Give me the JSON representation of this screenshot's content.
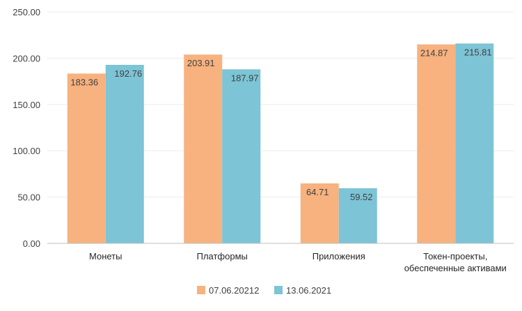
{
  "chart_data": {
    "type": "bar",
    "categories": [
      [
        "Монеты"
      ],
      [
        "Платформы"
      ],
      [
        "Приложения"
      ],
      [
        "Токен-проекты,",
        "обеспеченные активами"
      ]
    ],
    "series": [
      {
        "name": "07.06.20212",
        "values": [
          183.36,
          203.91,
          64.71,
          214.87
        ],
        "color": "#F7B27F"
      },
      {
        "name": "13.06.2021",
        "values": [
          192.76,
          187.97,
          59.52,
          215.81
        ],
        "color": "#7CC4D6"
      }
    ],
    "value_labels": [
      [
        "183.36",
        "203.91",
        "64.71",
        "214.87"
      ],
      [
        "192.76",
        "187.97",
        "59.52",
        "215.81"
      ]
    ],
    "y_ticks": [
      "0.00",
      "50.00",
      "100.00",
      "150.00",
      "200.00",
      "250.00"
    ],
    "ylim": [
      0,
      250
    ],
    "grid": true,
    "legend_position": "bottom",
    "colors": {
      "grid": "#ececec",
      "axis": "#bfbfbf"
    }
  }
}
